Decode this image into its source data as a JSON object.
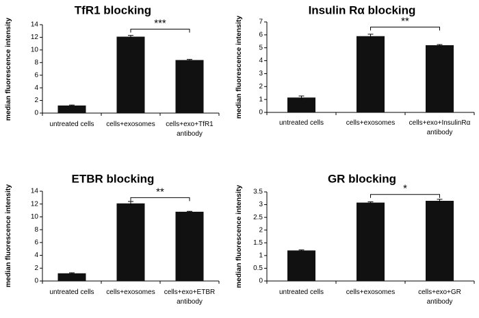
{
  "chart_data": [
    {
      "type": "bar",
      "title": "TfR1 blocking",
      "ylabel": "median fluorescence intensity",
      "xlabel": "",
      "ylim": [
        0,
        14
      ],
      "ytick_step": 2,
      "yticks": [
        "0",
        "2",
        "4",
        "6",
        "8",
        "10",
        "12",
        "14"
      ],
      "categories": [
        [
          "untreated cells"
        ],
        [
          "cells+exosomes"
        ],
        [
          "cells+exo+TfR1",
          "antibody"
        ]
      ],
      "values": [
        1.2,
        12.1,
        8.4
      ],
      "errors": [
        0.08,
        0.2,
        0.1
      ],
      "significance": {
        "label": "***",
        "between": [
          1,
          2
        ],
        "level": 13.3
      },
      "bar_color": "#111111"
    },
    {
      "type": "bar",
      "title": "Insulin Rα blocking",
      "ylabel": "median fluorescence intensity",
      "xlabel": "",
      "ylim": [
        0,
        7
      ],
      "ytick_step": 1,
      "yticks": [
        "0",
        "1",
        "2",
        "3",
        "4",
        "5",
        "6",
        "7"
      ],
      "categories": [
        [
          "untreated cells"
        ],
        [
          "cells+exosomes"
        ],
        [
          "cells+exo+InsulinRα",
          "antibody"
        ]
      ],
      "values": [
        1.15,
        5.9,
        5.2
      ],
      "errors": [
        0.12,
        0.15,
        0.05
      ],
      "significance": {
        "label": "**",
        "between": [
          1,
          2
        ],
        "level": 6.6
      },
      "bar_color": "#111111"
    },
    {
      "type": "bar",
      "title": "ETBR blocking",
      "ylabel": "median fluorescence intensity",
      "xlabel": "",
      "ylim": [
        0,
        14
      ],
      "ytick_step": 2,
      "yticks": [
        "0",
        "2",
        "4",
        "6",
        "8",
        "10",
        "12",
        "14"
      ],
      "categories": [
        [
          "untreated cells"
        ],
        [
          "cells+exosomes"
        ],
        [
          "cells+exo+ETBR",
          "antibody"
        ]
      ],
      "values": [
        1.2,
        12.1,
        10.8
      ],
      "errors": [
        0.08,
        0.3,
        0.07
      ],
      "significance": {
        "label": "**",
        "between": [
          1,
          2
        ],
        "level": 13.0
      },
      "bar_color": "#111111"
    },
    {
      "type": "bar",
      "title": "GR blocking",
      "ylabel": "median fluorescence intensity",
      "xlabel": "",
      "ylim": [
        0,
        3.5
      ],
      "ytick_step": 0.5,
      "yticks": [
        "0",
        "0.5",
        "1",
        "1.5",
        "2",
        "2.5",
        "3",
        "3.5"
      ],
      "categories": [
        [
          "untreated cells"
        ],
        [
          "cells+exosomes"
        ],
        [
          "cells+exo+GR",
          "antibody"
        ]
      ],
      "values": [
        1.2,
        3.08,
        3.15
      ],
      "errors": [
        0.02,
        0.03,
        0.06
      ],
      "significance": {
        "label": "*",
        "between": [
          1,
          2
        ],
        "level": 3.4
      },
      "bar_color": "#111111"
    }
  ]
}
